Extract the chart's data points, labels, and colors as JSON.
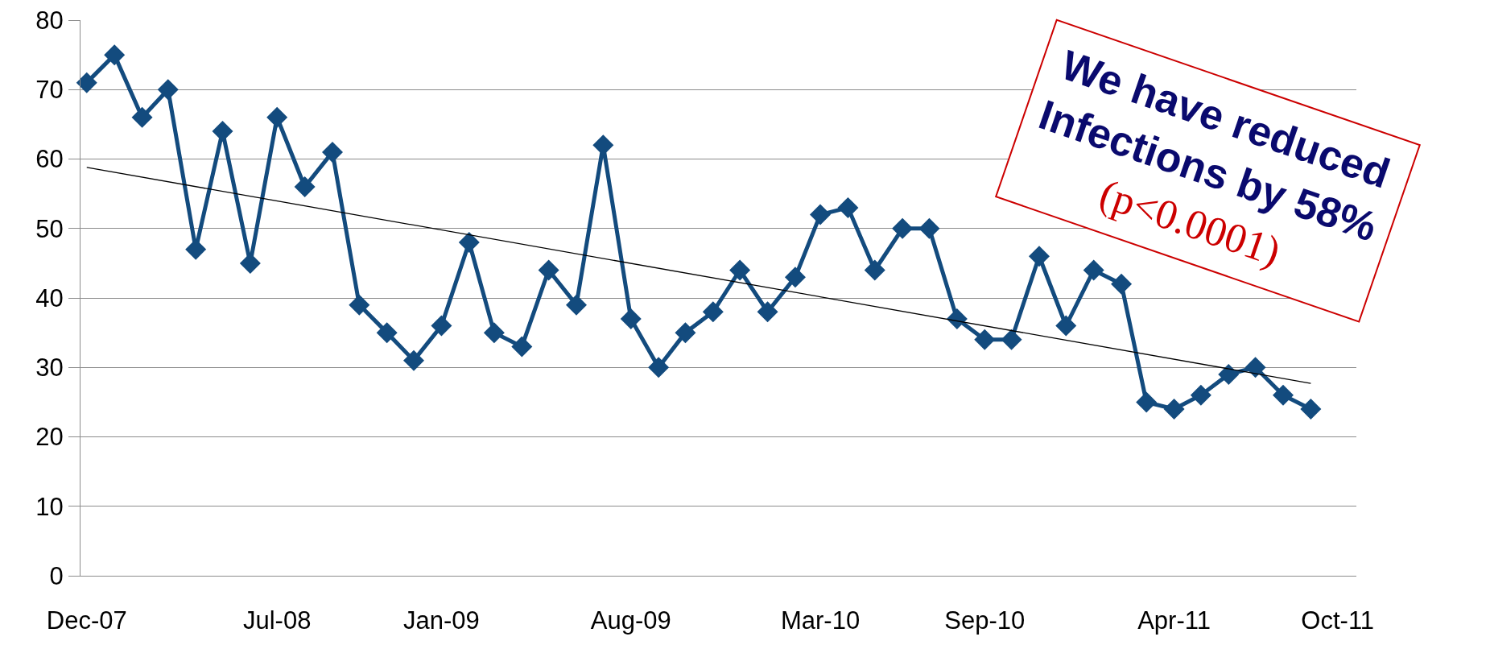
{
  "chart_data": {
    "type": "line",
    "x": [
      "2007-12",
      "2008-01",
      "2008-02",
      "2008-03",
      "2008-04",
      "2008-05",
      "2008-06",
      "2008-07",
      "2008-08",
      "2008-09",
      "2008-10",
      "2008-11",
      "2008-12",
      "2009-01",
      "2009-02",
      "2009-03",
      "2009-04",
      "2009-05",
      "2009-06",
      "2009-07",
      "2009-08",
      "2009-09",
      "2009-10",
      "2009-11",
      "2009-12",
      "2010-01",
      "2010-02",
      "2010-03",
      "2010-04",
      "2010-05",
      "2010-06",
      "2010-07",
      "2010-08",
      "2010-09",
      "2010-10",
      "2010-11",
      "2010-12",
      "2011-01",
      "2011-02",
      "2011-03",
      "2011-04",
      "2011-05",
      "2011-06",
      "2011-07",
      "2011-08",
      "2011-09"
    ],
    "series": [
      {
        "color": "#134b7e",
        "marker": "diamond",
        "line_style": "solid",
        "values": [
          71,
          75,
          66,
          70,
          47,
          64,
          45,
          66,
          56,
          61,
          39,
          35,
          31,
          36,
          48,
          35,
          33,
          44,
          39,
          62,
          37,
          30,
          35,
          38,
          44,
          38,
          43,
          52,
          53,
          44,
          50,
          50,
          37,
          34,
          34,
          46,
          36,
          44,
          42,
          25,
          24,
          26,
          29,
          30,
          26,
          24
        ]
      },
      {
        "type": "line",
        "color": "#000000",
        "marker": "none",
        "line_style": "solid",
        "x": [
          "2007-12",
          "2011-09"
        ],
        "values": [
          58.8,
          27.7
        ]
      }
    ],
    "xlim": [
      "2007-11-24",
      "2011-10-22"
    ],
    "xticks": [
      {
        "value": "2007-12",
        "label": "Dec-07"
      },
      {
        "value": "2008-07",
        "label": "Jul-08"
      },
      {
        "value": "2009-01",
        "label": "Jan-09"
      },
      {
        "value": "2009-08",
        "label": "Aug-09"
      },
      {
        "value": "2010-03",
        "label": "Mar-10"
      },
      {
        "value": "2010-09",
        "label": "Sep-10"
      },
      {
        "value": "2011-04",
        "label": "Apr-11"
      },
      {
        "value": "2011-10",
        "label": "Oct-11"
      }
    ],
    "ylim": [
      0,
      80
    ],
    "yticks": [
      0,
      10,
      20,
      30,
      40,
      50,
      60,
      70,
      80
    ],
    "grid": "y",
    "annotations": [
      "We have reduced\nInfections by 58%",
      "(p<0.0001)"
    ]
  }
}
